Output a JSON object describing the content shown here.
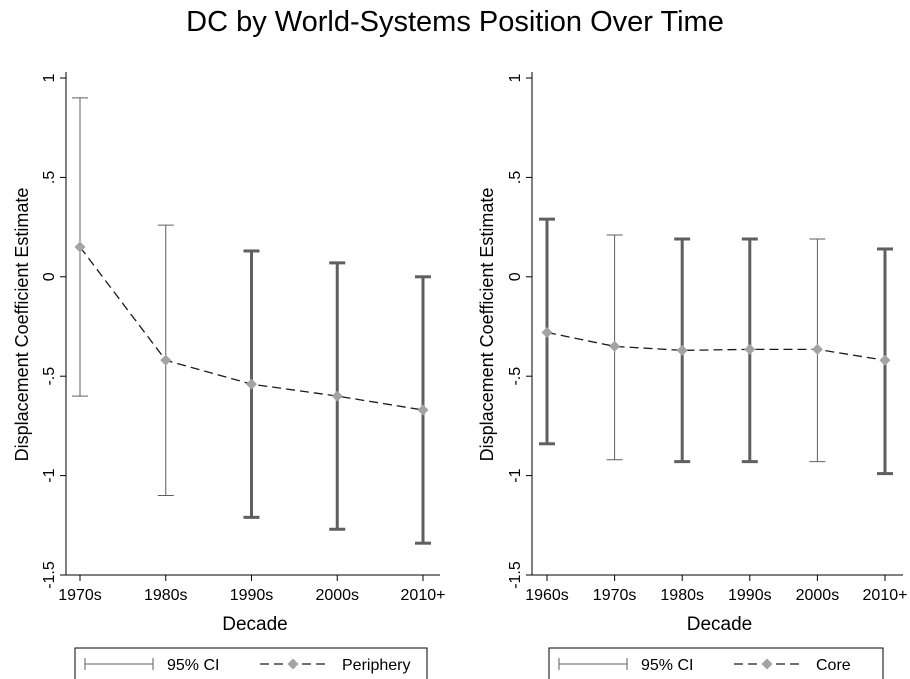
{
  "title": "DC by World-Systems Position Over Time",
  "chart_data": [
    {
      "type": "line",
      "xlabel": "Decade",
      "ylabel": "Displacement Coefficient Estimate",
      "ylim": [
        -1.5,
        1
      ],
      "yticks": [
        "1",
        ".5",
        "0",
        "-.5",
        "-1",
        "-1.5"
      ],
      "categories": [
        "1970s",
        "1980s",
        "1990s",
        "2000s",
        "2010+"
      ],
      "grid": false,
      "series": [
        {
          "name": "Periphery",
          "style": "dashed line with diamond markers",
          "values": [
            0.15,
            -0.42,
            -0.54,
            -0.6,
            -0.67
          ],
          "ci_lower": [
            -0.6,
            -1.1,
            -1.21,
            -1.27,
            -1.34
          ],
          "ci_upper": [
            0.9,
            0.26,
            0.13,
            0.07,
            0.0
          ]
        }
      ],
      "ci_widths": [
        1,
        1,
        3,
        3,
        3
      ],
      "legend": {
        "placement": "bottom",
        "ci_label": "95% CI",
        "series_label": "Periphery"
      }
    },
    {
      "type": "line",
      "xlabel": "Decade",
      "ylabel": "Displacement Coefficient Estimate",
      "ylim": [
        -1.5,
        1
      ],
      "yticks": [
        "1",
        ".5",
        "0",
        "-.5",
        "-1",
        "-1.5"
      ],
      "categories": [
        "1960s",
        "1970s",
        "1980s",
        "1990s",
        "2000s",
        "2010+"
      ],
      "grid": false,
      "series": [
        {
          "name": "Core",
          "style": "dashed line with diamond markers",
          "values": [
            -0.28,
            -0.35,
            -0.37,
            -0.365,
            -0.365,
            -0.42
          ],
          "ci_lower": [
            -0.84,
            -0.92,
            -0.93,
            -0.93,
            -0.93,
            -0.99
          ],
          "ci_upper": [
            0.29,
            0.21,
            0.19,
            0.19,
            0.19,
            0.14
          ]
        }
      ],
      "ci_widths": [
        3,
        1,
        3,
        3,
        1,
        3
      ],
      "legend": {
        "placement": "bottom",
        "ci_label": "95% CI",
        "series_label": "Core"
      }
    }
  ],
  "colors": {
    "ci_bar": "#5f5f5f",
    "marker": "#a3a3a3",
    "line": "#1a1a1a",
    "axis": "#000000"
  }
}
